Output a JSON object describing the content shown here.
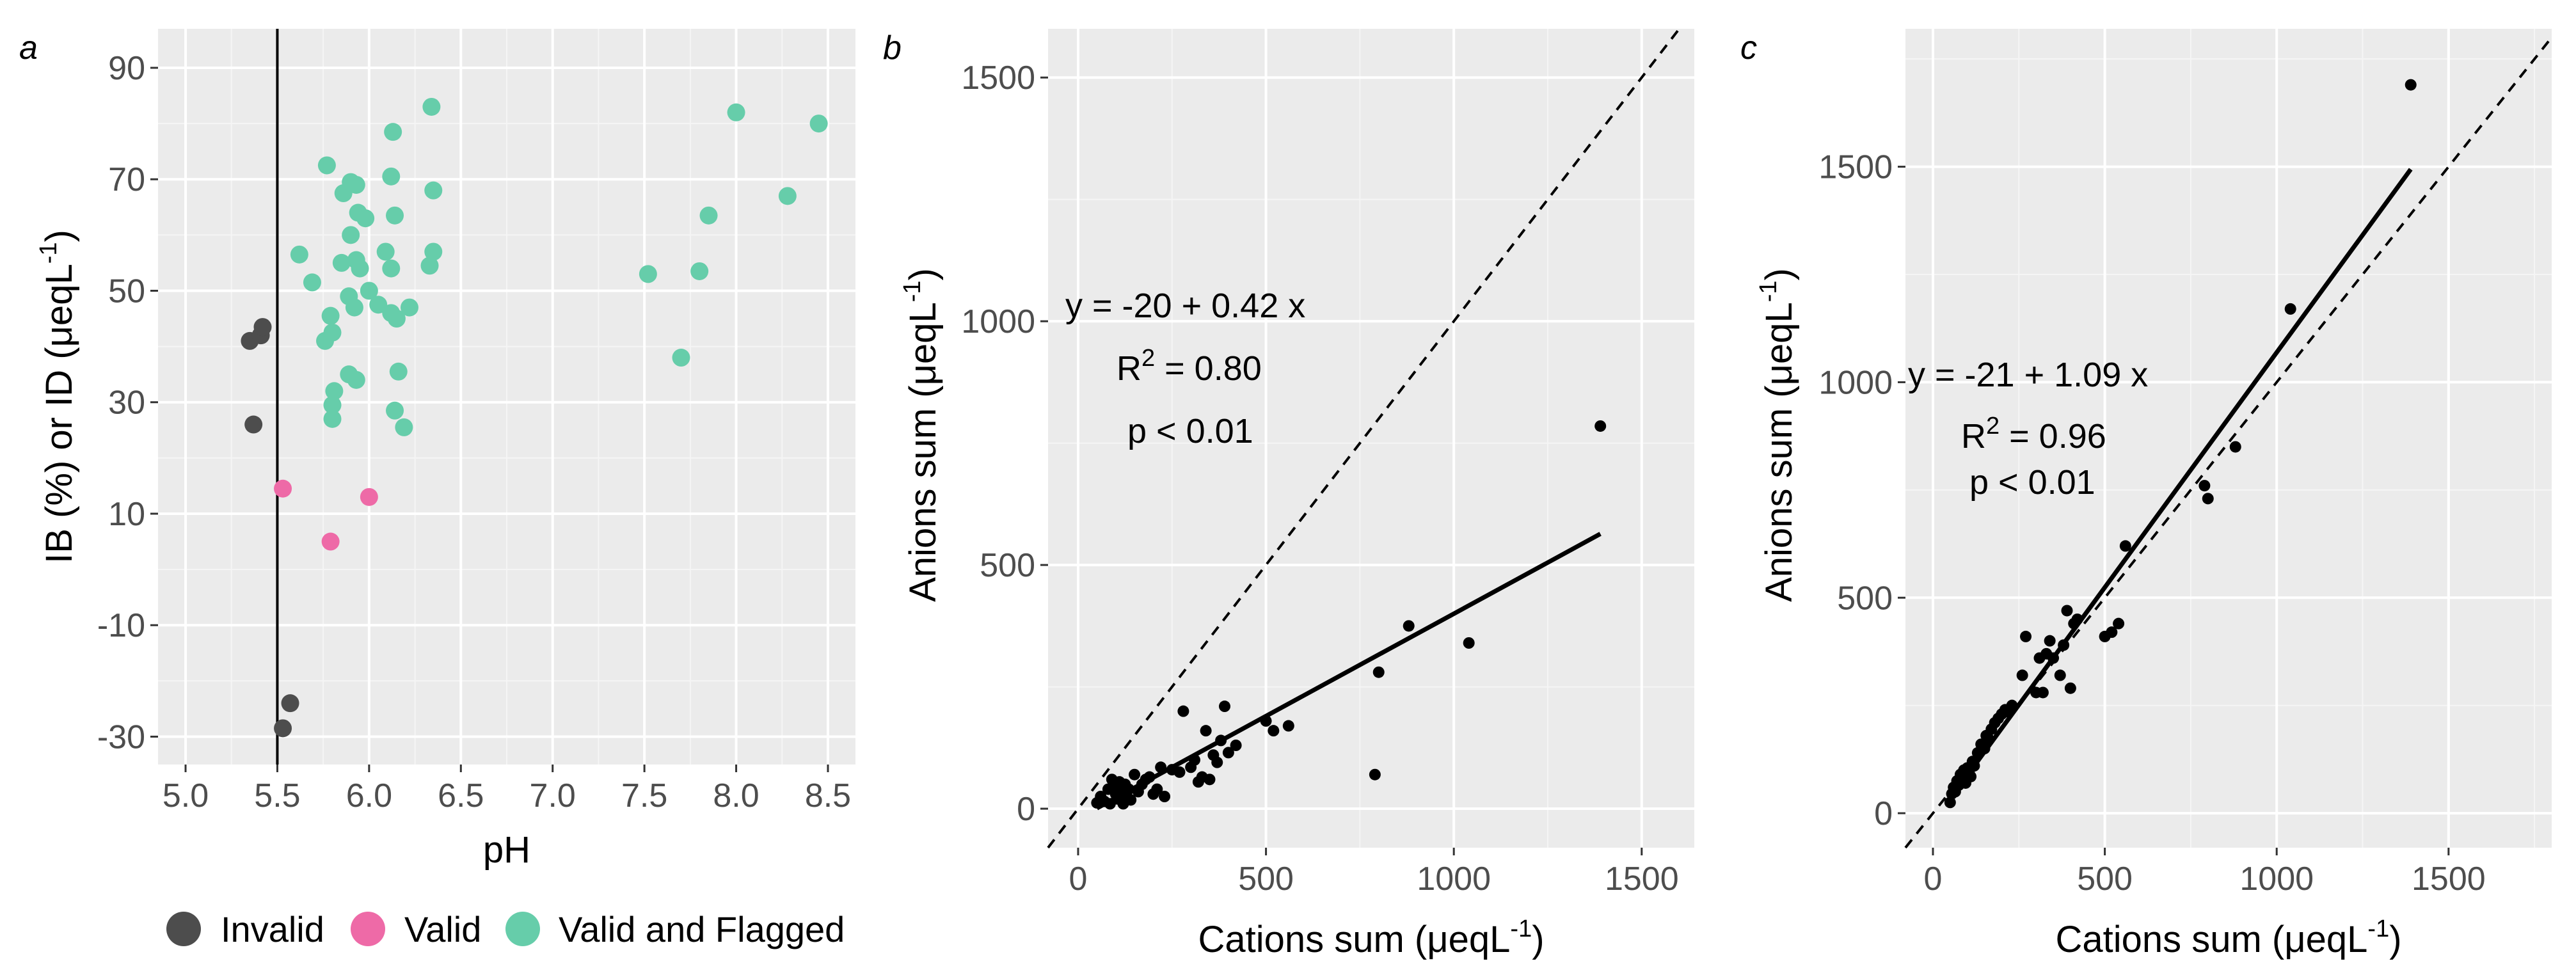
{
  "colors": {
    "panel_bg": "#ebebeb",
    "grid_major": "#ffffff",
    "grid_minor": "#f5f5f5",
    "invalid": "#4d4d4d",
    "valid": "#ee6aa7",
    "flagged": "#66cdaa",
    "point": "#000000"
  },
  "chart_data": [
    {
      "panel": "a",
      "type": "scatter",
      "xlabel": "pH",
      "ylabel_main": "IB (%) or ID (μeqL",
      "ylabel_sup": "-1",
      "ylabel_close": ")",
      "xlim": [
        4.85,
        8.65
      ],
      "ylim": [
        -35,
        97
      ],
      "xticks": [
        5.0,
        5.5,
        6.0,
        6.5,
        7.0,
        7.5,
        8.0,
        8.5
      ],
      "xtick_labels": [
        "5.0",
        "5.5",
        "6.0",
        "6.5",
        "7.0",
        "7.5",
        "8.0",
        "8.5"
      ],
      "yticks": [
        -30,
        -10,
        10,
        30,
        50,
        70,
        90
      ],
      "ytick_labels": [
        "-30",
        "-10",
        "10",
        "30",
        "50",
        "70",
        "90"
      ],
      "vline_x": 5.5,
      "legend": {
        "position": "bottom",
        "items": [
          {
            "label": "Invalid",
            "group": "invalid"
          },
          {
            "label": "Valid",
            "group": "valid"
          },
          {
            "label": "Valid and Flagged",
            "group": "flagged"
          }
        ]
      },
      "series": [
        {
          "name": "Invalid",
          "group": "invalid",
          "points": [
            [
              5.35,
              41
            ],
            [
              5.41,
              42
            ],
            [
              5.42,
              43.5
            ],
            [
              5.37,
              26
            ],
            [
              5.57,
              -24
            ],
            [
              5.53,
              -28.5
            ]
          ]
        },
        {
          "name": "Valid",
          "group": "valid",
          "points": [
            [
              5.53,
              14.5
            ],
            [
              6.0,
              13
            ],
            [
              5.79,
              5
            ]
          ]
        },
        {
          "name": "Valid and Flagged",
          "group": "flagged",
          "points": [
            [
              5.77,
              72.5
            ],
            [
              5.86,
              67.5
            ],
            [
              5.9,
              69.5
            ],
            [
              5.93,
              69
            ],
            [
              5.94,
              64
            ],
            [
              5.98,
              63
            ],
            [
              6.12,
              70.5
            ],
            [
              6.13,
              78.5
            ],
            [
              6.34,
              83
            ],
            [
              6.35,
              68
            ],
            [
              6.14,
              63.5
            ],
            [
              5.62,
              56.5
            ],
            [
              5.85,
              55
            ],
            [
              5.9,
              60
            ],
            [
              5.93,
              55.5
            ],
            [
              5.95,
              54
            ],
            [
              6.09,
              57
            ],
            [
              6.12,
              54
            ],
            [
              6.35,
              57
            ],
            [
              6.33,
              54.5
            ],
            [
              5.69,
              51.5
            ],
            [
              5.79,
              45.5
            ],
            [
              5.89,
              49
            ],
            [
              5.92,
              47
            ],
            [
              6.0,
              50
            ],
            [
              6.05,
              47.5
            ],
            [
              6.12,
              46
            ],
            [
              6.22,
              47
            ],
            [
              6.15,
              45
            ],
            [
              5.76,
              41
            ],
            [
              5.8,
              42.5
            ],
            [
              5.89,
              35
            ],
            [
              5.93,
              34
            ],
            [
              5.81,
              32
            ],
            [
              5.8,
              29.5
            ],
            [
              5.8,
              27
            ],
            [
              6.16,
              35.5
            ],
            [
              6.14,
              28.5
            ],
            [
              6.19,
              25.5
            ],
            [
              7.52,
              53
            ],
            [
              7.8,
              53.5
            ],
            [
              7.85,
              63.5
            ],
            [
              8.0,
              82
            ],
            [
              8.28,
              67
            ],
            [
              8.45,
              80
            ],
            [
              7.7,
              38
            ]
          ]
        }
      ]
    },
    {
      "panel": "b",
      "type": "scatter",
      "xlabel_main": "Cations sum (μeqL",
      "xlabel_sup": "-1",
      "xlabel_close": ")",
      "ylabel_main": "Anions sum (μeqL",
      "ylabel_sup": "-1",
      "ylabel_close": ")",
      "xlim": [
        -80,
        1640
      ],
      "ylim": [
        -80,
        1600
      ],
      "xticks": [
        0,
        500,
        1000,
        1500
      ],
      "xtick_labels": [
        "0",
        "500",
        "1000",
        "1500"
      ],
      "yticks": [
        0,
        500,
        1000,
        1500
      ],
      "ytick_labels": [
        "0",
        "500",
        "1000",
        "1500"
      ],
      "fit": {
        "intercept": -20,
        "slope": 0.42,
        "x_range": [
          50,
          1390
        ]
      },
      "identity_line": true,
      "annotation": {
        "equation": "y = -20 + 0.42 x",
        "r2_prefix": "R",
        "r2_sup": "2",
        "r2_value": " = 0.80",
        "p": "p < 0.01"
      },
      "points": [
        [
          50,
          12
        ],
        [
          60,
          25
        ],
        [
          70,
          15
        ],
        [
          80,
          40
        ],
        [
          85,
          10
        ],
        [
          90,
          60
        ],
        [
          95,
          45
        ],
        [
          100,
          30
        ],
        [
          105,
          20
        ],
        [
          110,
          55
        ],
        [
          115,
          35
        ],
        [
          120,
          10
        ],
        [
          125,
          50
        ],
        [
          130,
          25
        ],
        [
          135,
          40
        ],
        [
          140,
          18
        ],
        [
          150,
          70
        ],
        [
          160,
          35
        ],
        [
          170,
          50
        ],
        [
          180,
          60
        ],
        [
          190,
          65
        ],
        [
          200,
          30
        ],
        [
          210,
          40
        ],
        [
          220,
          85
        ],
        [
          230,
          25
        ],
        [
          250,
          80
        ],
        [
          270,
          75
        ],
        [
          280,
          200
        ],
        [
          300,
          85
        ],
        [
          310,
          100
        ],
        [
          320,
          55
        ],
        [
          330,
          65
        ],
        [
          340,
          160
        ],
        [
          350,
          60
        ],
        [
          360,
          110
        ],
        [
          370,
          95
        ],
        [
          380,
          140
        ],
        [
          390,
          210
        ],
        [
          400,
          115
        ],
        [
          420,
          130
        ],
        [
          500,
          180
        ],
        [
          520,
          160
        ],
        [
          560,
          170
        ],
        [
          790,
          70
        ],
        [
          800,
          280
        ],
        [
          880,
          375
        ],
        [
          1040,
          340
        ],
        [
          1390,
          785
        ]
      ]
    },
    {
      "panel": "c",
      "type": "scatter",
      "xlabel_main": "Cations sum (μeqL",
      "xlabel_sup": "-1",
      "xlabel_close": ")",
      "ylabel_main": "Anions sum (μeqL",
      "ylabel_sup": "-1",
      "ylabel_close": ")",
      "xlim": [
        -80,
        1800
      ],
      "ylim": [
        -80,
        1820
      ],
      "xticks": [
        0,
        500,
        1000,
        1500
      ],
      "xtick_labels": [
        "0",
        "500",
        "1000",
        "1500"
      ],
      "yticks": [
        0,
        500,
        1000,
        1500
      ],
      "ytick_labels": [
        "0",
        "500",
        "1000",
        "1500"
      ],
      "fit": {
        "intercept": -21,
        "slope": 1.09,
        "x_range": [
          50,
          1390
        ]
      },
      "identity_line": true,
      "annotation": {
        "equation": "y = -21 + 1.09 x",
        "r2_prefix": "R",
        "r2_sup": "2",
        "r2_value": " = 0.96",
        "p": "p < 0.01"
      },
      "points": [
        [
          50,
          25
        ],
        [
          55,
          45
        ],
        [
          60,
          60
        ],
        [
          65,
          50
        ],
        [
          70,
          75
        ],
        [
          75,
          65
        ],
        [
          80,
          90
        ],
        [
          85,
          80
        ],
        [
          90,
          100
        ],
        [
          95,
          70
        ],
        [
          100,
          105
        ],
        [
          105,
          95
        ],
        [
          110,
          85
        ],
        [
          115,
          120
        ],
        [
          120,
          110
        ],
        [
          130,
          140
        ],
        [
          140,
          160
        ],
        [
          150,
          150
        ],
        [
          155,
          180
        ],
        [
          160,
          175
        ],
        [
          170,
          195
        ],
        [
          180,
          210
        ],
        [
          190,
          220
        ],
        [
          200,
          230
        ],
        [
          210,
          240
        ],
        [
          220,
          235
        ],
        [
          230,
          250
        ],
        [
          260,
          320
        ],
        [
          270,
          410
        ],
        [
          300,
          280
        ],
        [
          310,
          360
        ],
        [
          320,
          280
        ],
        [
          330,
          370
        ],
        [
          340,
          400
        ],
        [
          350,
          360
        ],
        [
          370,
          320
        ],
        [
          380,
          390
        ],
        [
          390,
          470
        ],
        [
          400,
          290
        ],
        [
          410,
          440
        ],
        [
          420,
          450
        ],
        [
          500,
          410
        ],
        [
          520,
          420
        ],
        [
          540,
          440
        ],
        [
          560,
          620
        ],
        [
          790,
          760
        ],
        [
          800,
          730
        ],
        [
          880,
          850
        ],
        [
          1040,
          1170
        ],
        [
          1390,
          1690
        ]
      ]
    }
  ]
}
